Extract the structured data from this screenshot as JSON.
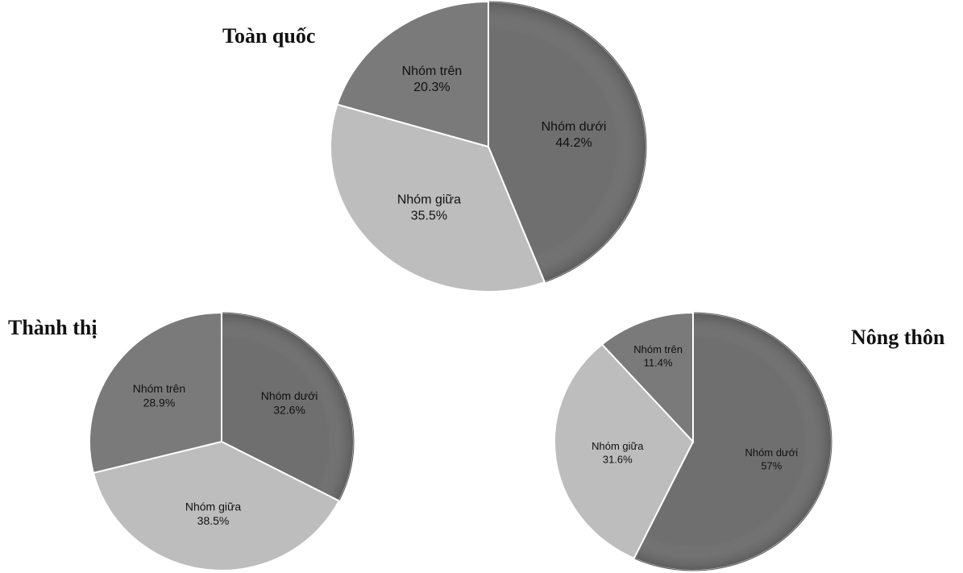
{
  "chart_data": [
    {
      "type": "pie",
      "title": "Toàn quốc",
      "slices": [
        {
          "label": "Nhóm dưới",
          "value": 44.2,
          "display": "44.2%",
          "color": "#6f6f6f"
        },
        {
          "label": "Nhóm giữa",
          "value": 35.5,
          "display": "35.5%",
          "color": "#bdbdbd"
        },
        {
          "label": "Nhóm trên",
          "value": 20.3,
          "display": "20.3%",
          "color": "#7a7a7a"
        }
      ]
    },
    {
      "type": "pie",
      "title": "Thành thị",
      "slices": [
        {
          "label": "Nhóm dưới",
          "value": 32.6,
          "display": "32.6%",
          "color": "#6f6f6f"
        },
        {
          "label": "Nhóm giữa",
          "value": 38.5,
          "display": "38.5%",
          "color": "#bdbdbd"
        },
        {
          "label": "Nhóm trên",
          "value": 28.9,
          "display": "28.9%",
          "color": "#7a7a7a"
        }
      ]
    },
    {
      "type": "pie",
      "title": "Nông thôn",
      "slices": [
        {
          "label": "Nhóm dưới",
          "value": 57,
          "display": "57%",
          "color": "#6f6f6f"
        },
        {
          "label": "Nhóm giữa",
          "value": 31.6,
          "display": "31.6%",
          "color": "#bdbdbd"
        },
        {
          "label": "Nhóm trên",
          "value": 11.4,
          "display": "11.4%",
          "color": "#7a7a7a"
        }
      ]
    }
  ]
}
